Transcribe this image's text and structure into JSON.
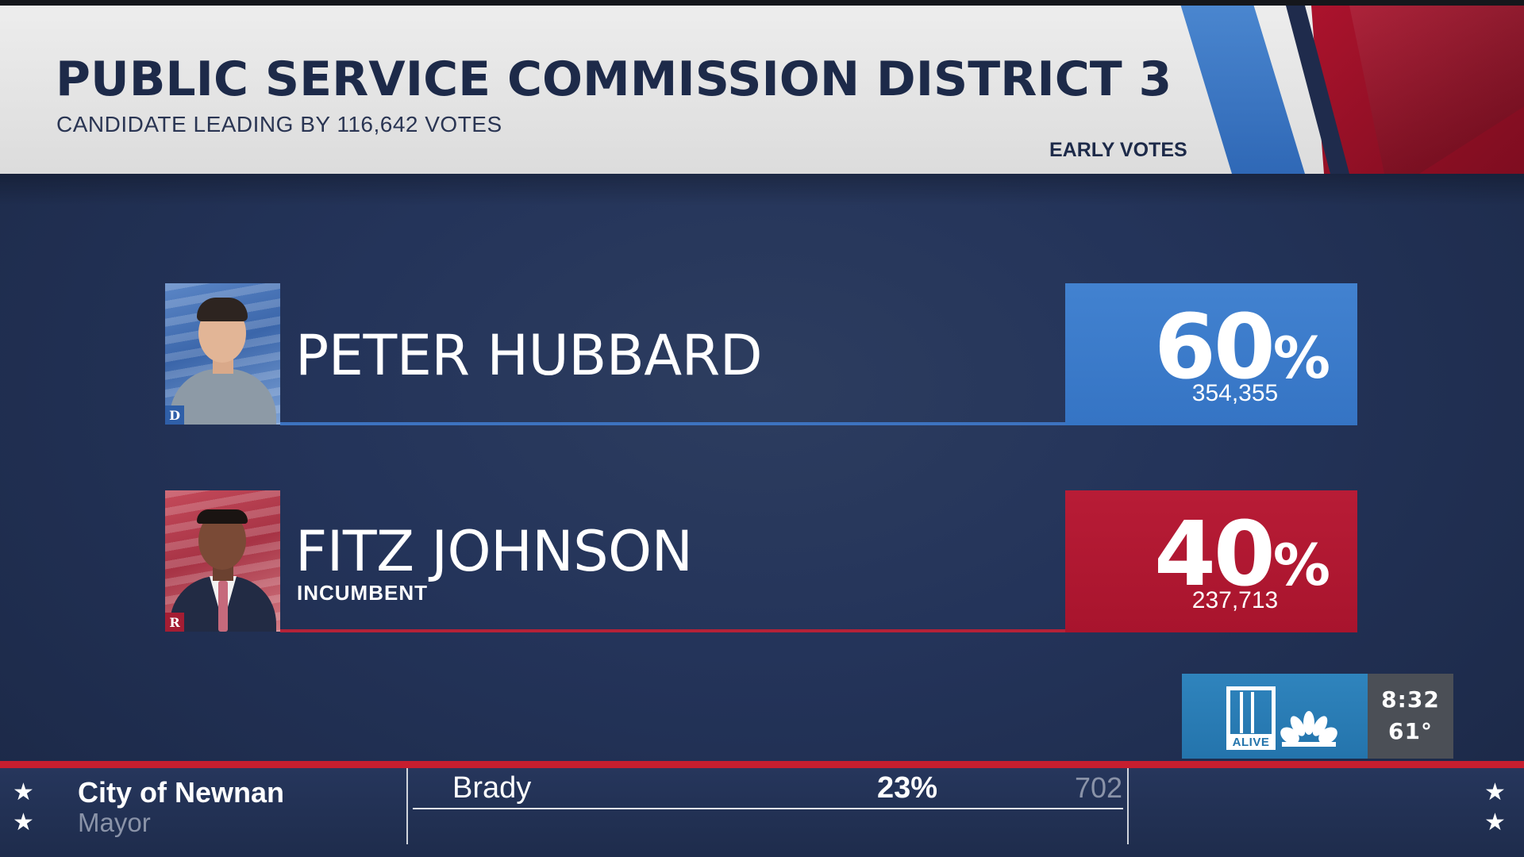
{
  "header": {
    "title": "PUBLIC SERVICE COMMISSION DISTRICT 3",
    "subtitle": "CANDIDATE LEADING BY 116,642 VOTES",
    "vote_type": "EARLY VOTES"
  },
  "candidates": [
    {
      "name": "PETER HUBBARD",
      "tag": "",
      "party": "D",
      "percent": "60",
      "percent_sign": "%",
      "votes": "354,355",
      "color": "#3a78c8"
    },
    {
      "name": "FITZ JOHNSON",
      "tag": "INCUMBENT",
      "party": "R",
      "percent": "40",
      "percent_sign": "%",
      "votes": "237,713",
      "color": "#b0182f"
    }
  ],
  "station": {
    "logo_number": "11",
    "logo_word": "ALIVE",
    "network_icon": "peacock-icon",
    "time": "8:32",
    "temperature": "61°"
  },
  "ticker": {
    "place": "City of Newnan",
    "office": "Mayor",
    "candidate": "Brady",
    "percent": "23%",
    "votes": "702",
    "star_glyph": "★"
  },
  "colors": {
    "dem_blue": "#3a78c8",
    "rep_red": "#b0182f",
    "navy_background": "#24345a",
    "ticker_red": "#c61e2f"
  }
}
